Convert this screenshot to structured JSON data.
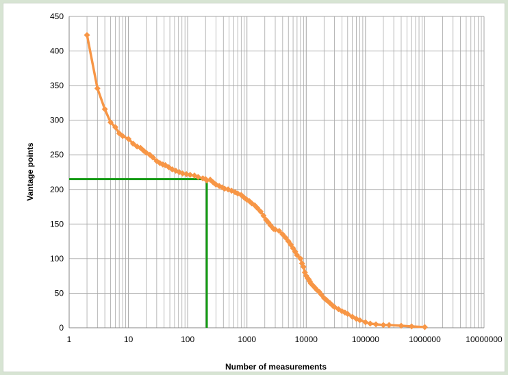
{
  "chart_data": {
    "type": "line",
    "xlabel": "Number of measurements",
    "ylabel": "Vantage points",
    "x_scale": "log",
    "xlim": [
      1,
      10000000
    ],
    "ylim": [
      0,
      450
    ],
    "x_ticks": [
      "1",
      "10",
      "100",
      "1000",
      "10000",
      "100000",
      "1000000",
      "10000000"
    ],
    "y_ticks": [
      "0",
      "50",
      "100",
      "150",
      "200",
      "250",
      "300",
      "350",
      "400",
      "450"
    ],
    "grid": {
      "major": true,
      "minor_x": true
    },
    "legend": "none",
    "colors": {
      "series": "#f79646",
      "reference": "#139a13",
      "grid": "#a6a6a6"
    },
    "series": [
      {
        "x": [
          2,
          3,
          4,
          5,
          6,
          7,
          8,
          10,
          12,
          14,
          16,
          18,
          20,
          23,
          26,
          30,
          34,
          38,
          42,
          48,
          55,
          63,
          72,
          82,
          95,
          110,
          130,
          150,
          180,
          200,
          210,
          240,
          270,
          300,
          340,
          380,
          420,
          480,
          550,
          630,
          700,
          800,
          900,
          1000,
          1100,
          1200,
          1350,
          1500,
          1700,
          1900,
          2100,
          2300,
          2500,
          2800,
          3000,
          3500,
          4000,
          4500,
          5000,
          5500,
          6000,
          6500,
          7000,
          8000,
          8500,
          9000,
          9500,
          10000,
          10500,
          11000,
          11500,
          12000,
          13000,
          14000,
          15000,
          16500,
          18000,
          20000,
          22000,
          25000,
          28000,
          30000,
          35000,
          40000,
          45000,
          50000,
          60000,
          70000,
          80000,
          100000,
          120000,
          150000,
          200000,
          250000,
          400000,
          600000,
          1000000
        ],
        "y": [
          423,
          346,
          316,
          297,
          290,
          281,
          277,
          273,
          266,
          262,
          260,
          256,
          253,
          250,
          246,
          241,
          238,
          236,
          235,
          232,
          229,
          227,
          225,
          223,
          222,
          221,
          220,
          218,
          216,
          215,
          213,
          214,
          210,
          207,
          205,
          203,
          201,
          200,
          198,
          196,
          194,
          192,
          188,
          185,
          183,
          180,
          177,
          173,
          168,
          162,
          156,
          152,
          148,
          143,
          142,
          140,
          135,
          130,
          125,
          120,
          115,
          110,
          105,
          100,
          93,
          88,
          80,
          75,
          72,
          70,
          67,
          64,
          61,
          58,
          55,
          52,
          48,
          43,
          40,
          36,
          32,
          30,
          27,
          24,
          22,
          20,
          16,
          13,
          11,
          8,
          6,
          5,
          4,
          4,
          3,
          2,
          1
        ]
      }
    ],
    "reference_point": {
      "x": 210,
      "y": 215
    }
  }
}
